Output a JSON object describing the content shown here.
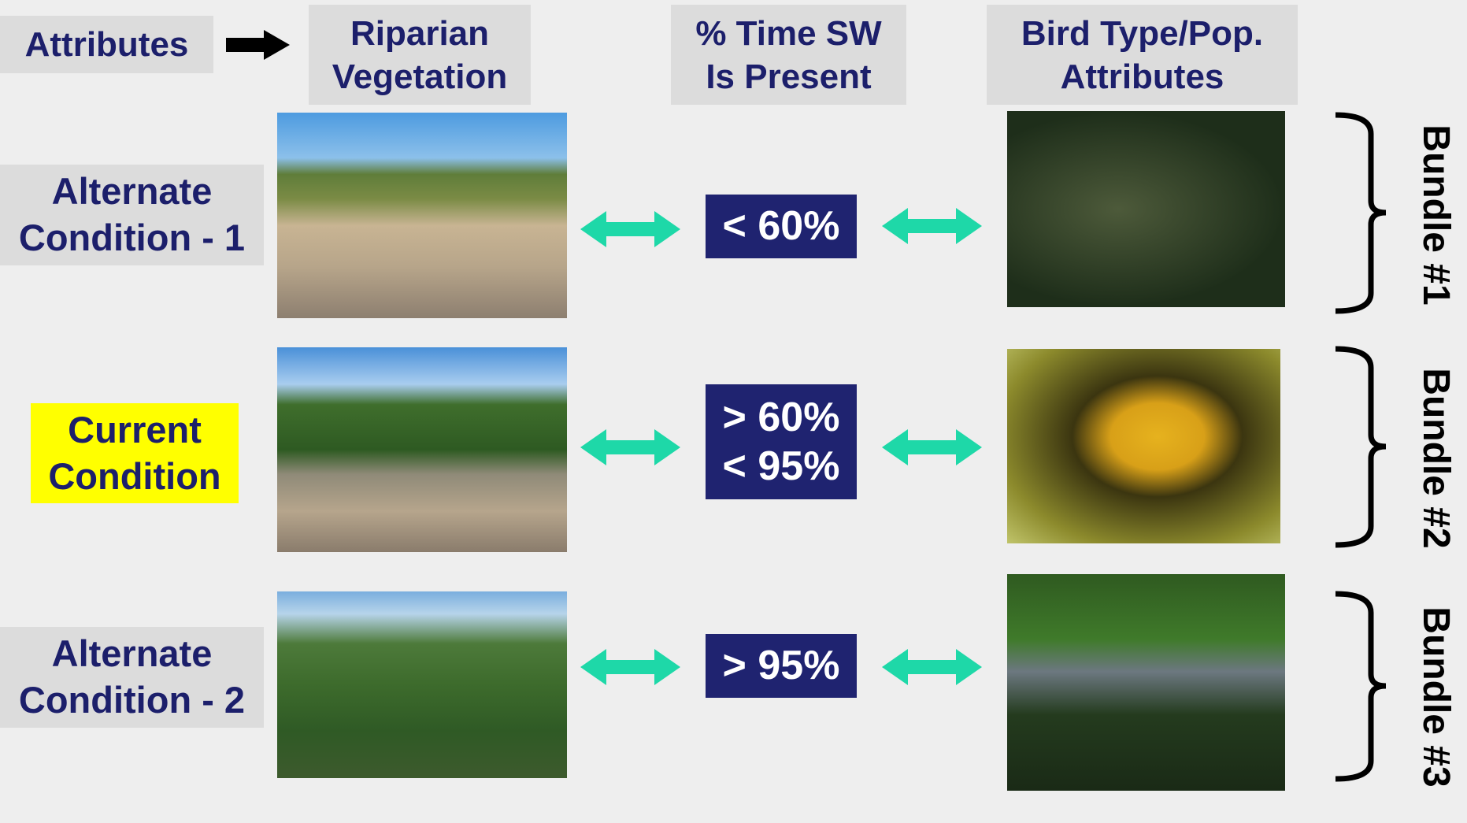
{
  "header": {
    "label": "Attributes",
    "columns": [
      "Riparian\nVegetation",
      "% Time SW\nIs Present",
      "Bird  Type/Pop.\nAttributes"
    ]
  },
  "rows": [
    {
      "condition": "Alternate\nCondition - 1",
      "time_sw": "< 60%",
      "bundle": "Bundle #1"
    },
    {
      "condition": "Current\nCondition",
      "time_sw": "> 60%\n< 95%",
      "bundle": "Bundle #2"
    },
    {
      "condition": "Alternate\nCondition - 2",
      "time_sw": "> 95%",
      "bundle": "Bundle #3"
    }
  ]
}
